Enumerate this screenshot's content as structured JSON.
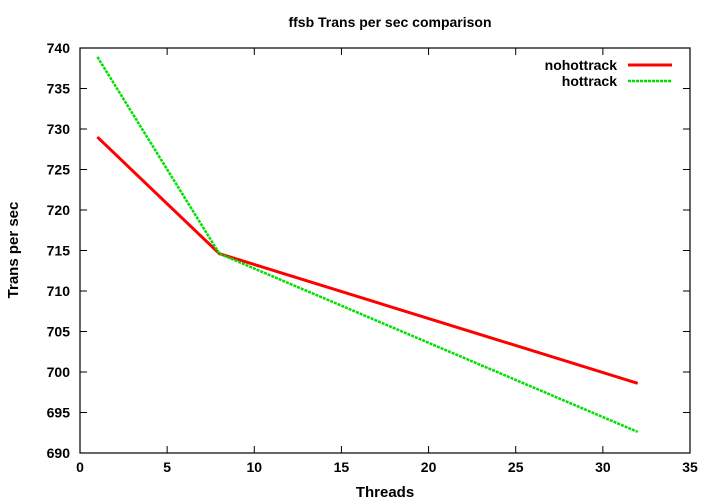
{
  "chart_data": {
    "type": "line",
    "title": "ffsb Trans per sec comparison",
    "xlabel": "Threads",
    "ylabel": "Trans per sec",
    "xlim": [
      0,
      35
    ],
    "ylim": [
      690,
      740
    ],
    "xticks": [
      0,
      5,
      10,
      15,
      20,
      25,
      30,
      35
    ],
    "yticks": [
      690,
      695,
      700,
      705,
      710,
      715,
      720,
      725,
      730,
      735,
      740
    ],
    "grid": false,
    "legend_position": "top-right",
    "series": [
      {
        "name": "nohottrack",
        "color": "#ff0000",
        "style": "solid",
        "x": [
          1,
          8,
          32
        ],
        "y": [
          729.0,
          714.6,
          698.6
        ]
      },
      {
        "name": "hottrack",
        "color": "#00e000",
        "style": "dashed",
        "x": [
          1,
          8,
          32
        ],
        "y": [
          738.9,
          714.6,
          692.6
        ]
      }
    ]
  }
}
